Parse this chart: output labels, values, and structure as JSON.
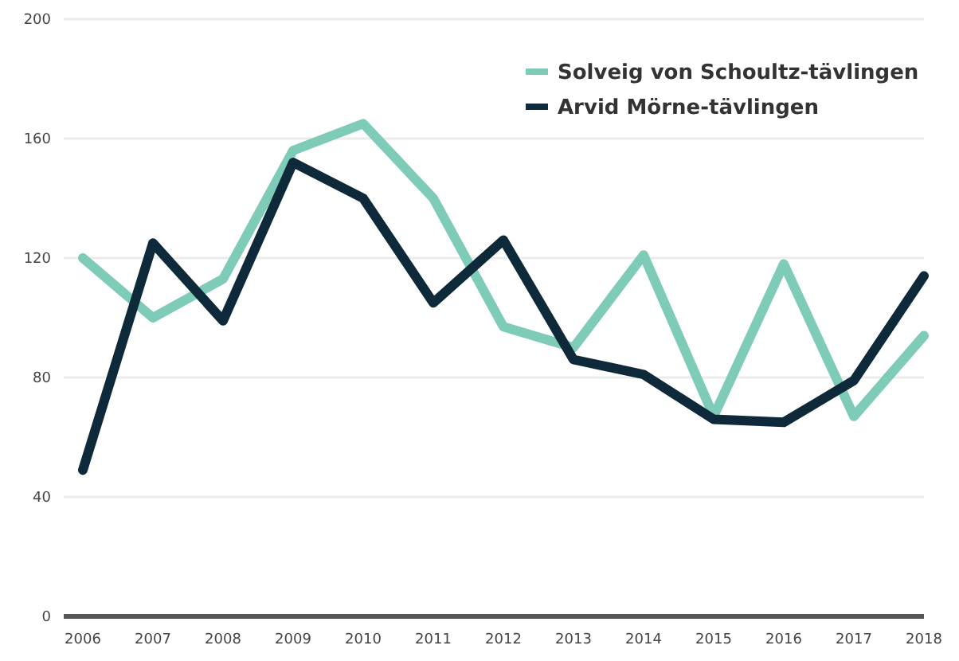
{
  "chart_data": {
    "type": "line",
    "categories": [
      "2006",
      "2007",
      "2008",
      "2009",
      "2010",
      "2011",
      "2012",
      "2013",
      "2014",
      "2015",
      "2016",
      "2017",
      "2018"
    ],
    "series": [
      {
        "name": "Solveig von Schoultz-tävlingen",
        "color": "#7ecbb8",
        "values": [
          120,
          100,
          113,
          156,
          165,
          140,
          97,
          90,
          121,
          67,
          118,
          67,
          94
        ]
      },
      {
        "name": "Arvid Mörne-tävlingen",
        "color": "#0e2a3a",
        "values": [
          49,
          125,
          99,
          152,
          140,
          105,
          126,
          86,
          81,
          66,
          65,
          79,
          114
        ]
      }
    ],
    "ylim": [
      0,
      200
    ],
    "yticks": [
      0,
      40,
      80,
      120,
      160,
      200
    ],
    "grid": "y",
    "legend": "top right",
    "marker": "none",
    "line_style": "solid"
  }
}
